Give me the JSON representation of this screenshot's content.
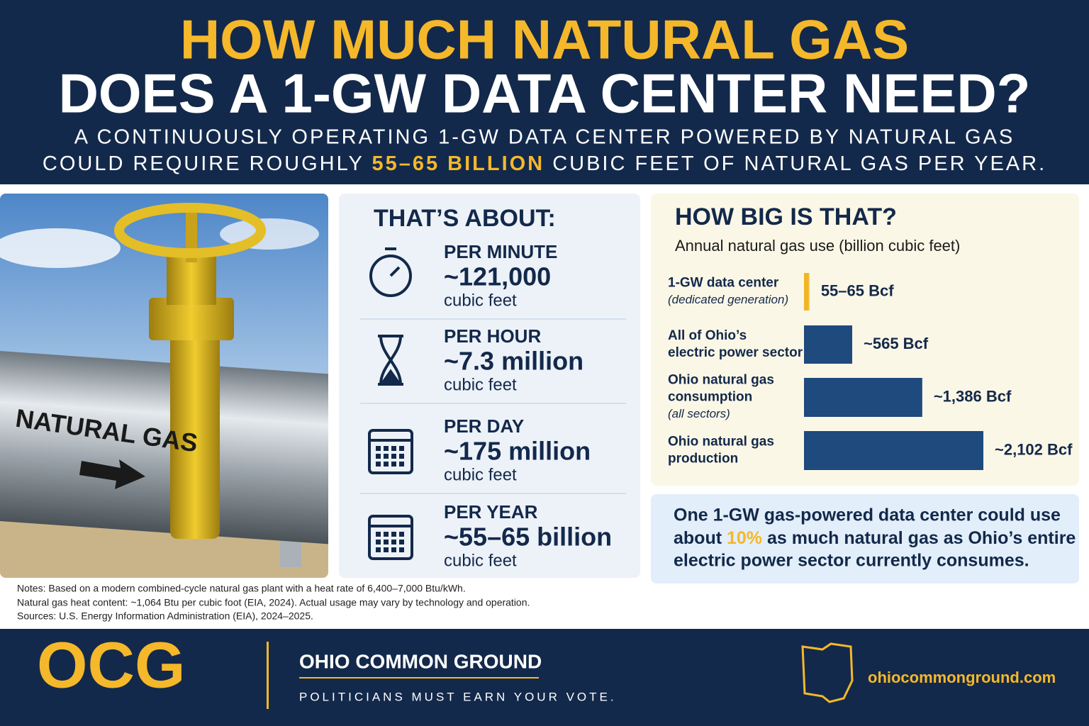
{
  "header": {
    "title_line1": "HOW MUCH NATURAL GAS",
    "title_line2": "DOES A 1-GW DATA CENTER NEED?",
    "subtitle_line1": "A CONTINUOUSLY OPERATING 1-GW DATA CENTER POWERED BY NATURAL GAS",
    "subtitle_line2_before": "COULD REQUIRE ROUGHLY",
    "subtitle_highlight": "55–65 BILLION",
    "subtitle_line2_after": "CUBIC FEET OF NATURAL GAS PER YEAR."
  },
  "photo": {
    "pipe_label": "NATURAL GAS"
  },
  "stats": {
    "title": "THAT’S ABOUT:",
    "rows": [
      {
        "period": "PER MINUTE",
        "amount": "~121,000",
        "unit": "cubic feet"
      },
      {
        "period": "PER HOUR",
        "amount": "~7.3 million",
        "unit": "cubic feet"
      },
      {
        "period": "PER DAY",
        "amount": "~175 million",
        "unit": "cubic feet"
      },
      {
        "period": "PER YEAR",
        "amount": "~55–65 billion",
        "unit": "cubic feet"
      }
    ]
  },
  "chart_data": {
    "type": "bar",
    "orientation": "horizontal",
    "title": "HOW BIG IS THAT?",
    "subtitle": "Annual natural gas use (billion cubic feet)",
    "categories": [
      {
        "lines": [
          "1-GW data center"
        ],
        "note": "(dedicated generation)"
      },
      {
        "lines": [
          "All of Ohio’s",
          "electric power sector"
        ]
      },
      {
        "lines": [
          "Ohio natural gas",
          "consumption"
        ],
        "note": "(all sectors)"
      },
      {
        "lines": [
          "Ohio natural gas",
          "production"
        ]
      }
    ],
    "values": [
      [
        55,
        65
      ],
      565,
      1386,
      2102
    ],
    "value_labels": [
      "55–65 Bcf",
      "~565 Bcf",
      "~1,386 Bcf",
      "~2,102 Bcf"
    ],
    "colors": [
      "#f2b523",
      "#1e4a7d",
      "#1e4a7d",
      "#1e4a7d"
    ]
  },
  "callout": {
    "line1": "One 1-GW gas-powered data center could use",
    "line2_before": "about",
    "highlight": "10%",
    "line2_after": "as much natural gas as Ohio’s entire",
    "line3": "electric power sector currently consumes."
  },
  "notes": [
    "Notes: Based on a modern combined-cycle natural gas plant with a heat rate of 6,400–7,000 Btu/kWh.",
    "Natural gas heat content: ~1,064 Btu per cubic foot (EIA, 2024). Actual usage may vary by technology and operation.",
    "Sources: U.S. Energy Information Administration (EIA), 2024–2025."
  ],
  "footer": {
    "logo": "OCG",
    "name": "OHIO COMMON GROUND",
    "tagline": "POLITICIANS MUST EARN YOUR VOTE.",
    "website": "ohiocommonground.com"
  }
}
